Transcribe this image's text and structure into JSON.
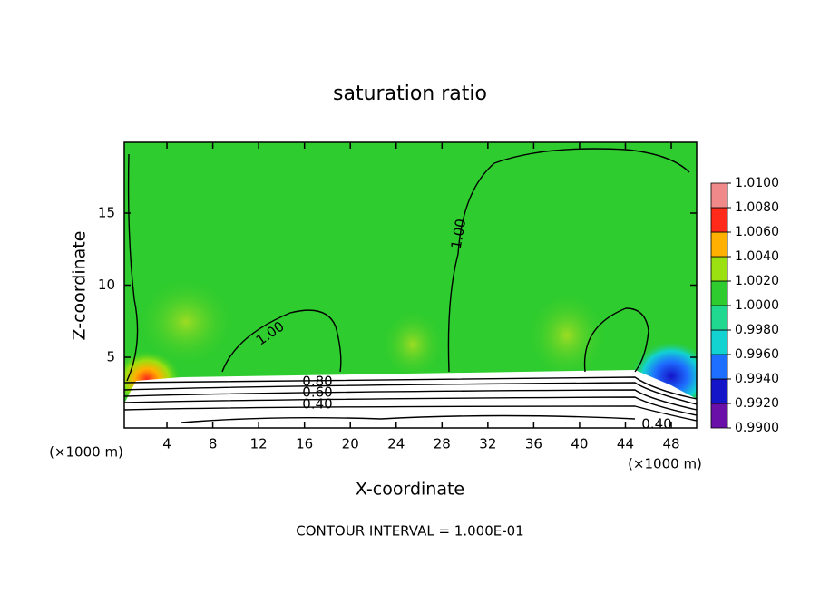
{
  "chart_data": {
    "type": "contour",
    "title": "saturation ratio",
    "xlabel": "X-coordinate",
    "ylabel": "Z-coordinate",
    "xunit_left": "(×1000 m)",
    "xunit_right": "(×1000 m)",
    "footer": "CONTOUR INTERVAL = 1.000E-01",
    "xlim": [
      0,
      50
    ],
    "ylim": [
      0,
      20
    ],
    "xticks": [
      4,
      8,
      12,
      16,
      20,
      24,
      28,
      32,
      36,
      40,
      44,
      48
    ],
    "yticks": [
      5,
      10,
      15
    ],
    "contour_labels": [
      "1.00",
      "1.00",
      "0.80",
      "0.60",
      "0.40",
      "0.40"
    ],
    "colorbar": {
      "ticks": [
        {
          "value": 0.99,
          "label": "0.9900"
        },
        {
          "value": 0.992,
          "label": "0.9920"
        },
        {
          "value": 0.994,
          "label": "0.9940"
        },
        {
          "value": 0.996,
          "label": "0.9960"
        },
        {
          "value": 0.998,
          "label": "0.9980"
        },
        {
          "value": 1.0,
          "label": "1.0000"
        },
        {
          "value": 1.002,
          "label": "1.0020"
        },
        {
          "value": 1.004,
          "label": "1.0040"
        },
        {
          "value": 1.006,
          "label": "1.0060"
        },
        {
          "value": 1.008,
          "label": "1.0080"
        },
        {
          "value": 1.01,
          "label": "1.0100"
        }
      ],
      "colors": [
        "#6a0fa8",
        "#1414c8",
        "#1e6eff",
        "#12d2d2",
        "#20d890",
        "#2ecc2e",
        "#9be010",
        "#ffb000",
        "#ff2a1a",
        "#f08a8a"
      ]
    }
  }
}
